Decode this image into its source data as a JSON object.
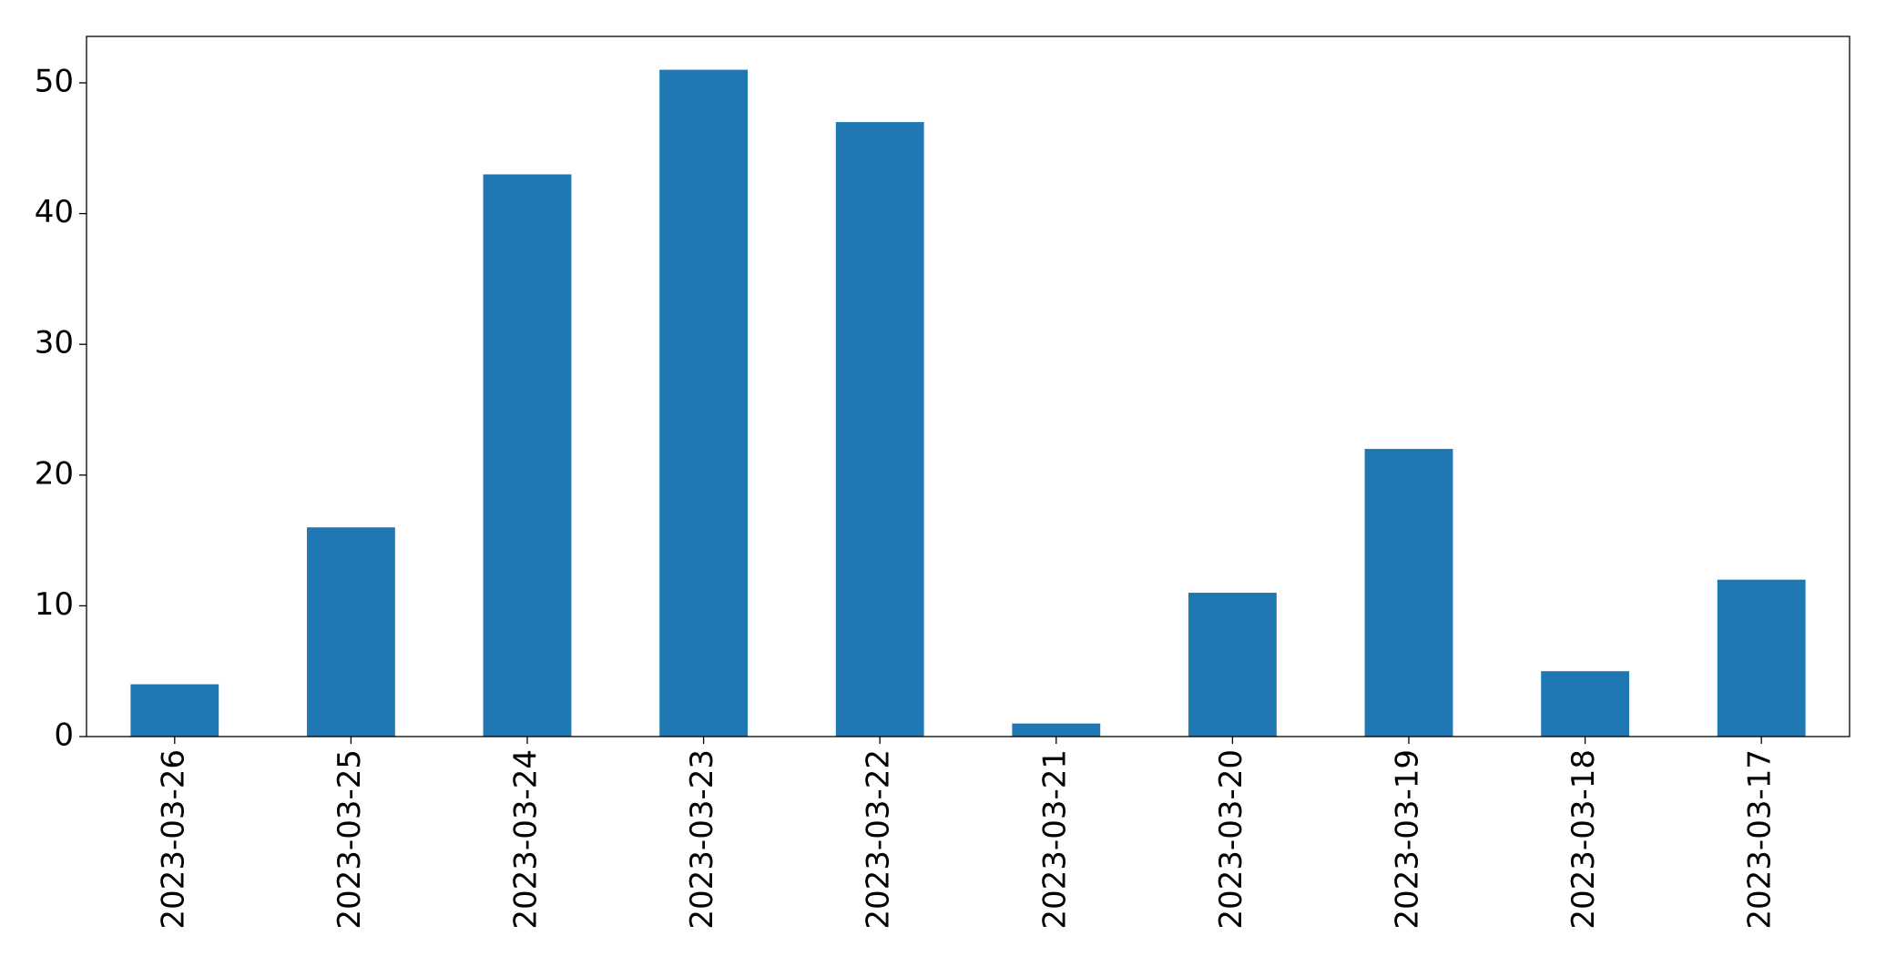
{
  "chart_data": {
    "type": "bar",
    "categories": [
      "2023-03-26",
      "2023-03-25",
      "2023-03-24",
      "2023-03-23",
      "2023-03-22",
      "2023-03-21",
      "2023-03-20",
      "2023-03-19",
      "2023-03-18",
      "2023-03-17"
    ],
    "values": [
      4,
      16,
      43,
      51,
      47,
      1,
      11,
      22,
      5,
      12
    ],
    "color": "#1f77b4",
    "ylim": [
      0,
      53.55
    ],
    "yticks": [
      0,
      10,
      20,
      30,
      40,
      50
    ],
    "grid": false
  }
}
